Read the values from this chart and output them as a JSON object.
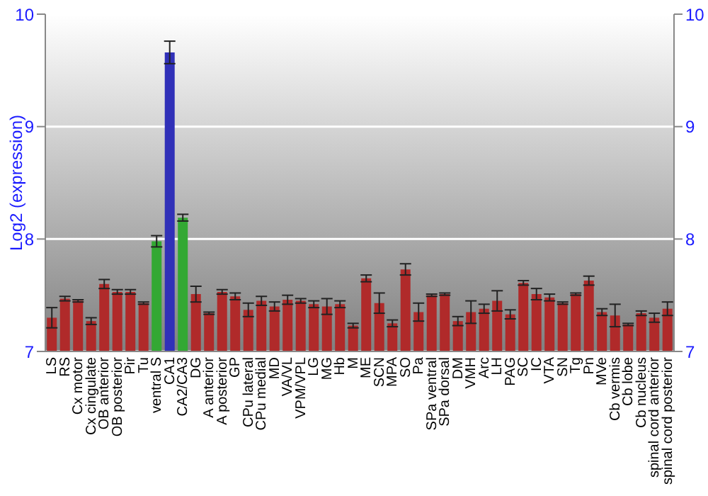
{
  "chart_data": {
    "type": "bar",
    "ylabel": "Log2 (expression)",
    "categories": [
      "LS",
      "RS",
      "Cx motor",
      "Cx cingulate",
      "OB anterior",
      "OB posterior",
      "Pir",
      "Tu",
      "ventral S",
      "CA1",
      "CA2/CA3",
      "DG",
      "A anterior",
      "A posterior",
      "GP",
      "CPu lateral",
      "CPu medial",
      "MD",
      "VA/VL",
      "VPM/VPL",
      "LG",
      "MG",
      "Hb",
      "M",
      "ME",
      "SCN",
      "MPA",
      "SO",
      "Pa",
      "SPa ventral",
      "SPa dorsal",
      "DM",
      "VMH",
      "Arc",
      "LH",
      "PAG",
      "SC",
      "IC",
      "VTA",
      "SN",
      "Tg",
      "Pn",
      "MVe",
      "Cb vermis",
      "Cb lobe",
      "Cb nucleus",
      "spinal cord anterior",
      "spinal cord posterior"
    ],
    "values": [
      7.3,
      7.47,
      7.45,
      7.27,
      7.6,
      7.53,
      7.53,
      7.43,
      7.98,
      9.66,
      8.19,
      7.51,
      7.34,
      7.53,
      7.49,
      7.37,
      7.45,
      7.4,
      7.46,
      7.45,
      7.42,
      7.4,
      7.42,
      7.23,
      7.65,
      7.43,
      7.25,
      7.73,
      7.35,
      7.5,
      7.51,
      7.27,
      7.35,
      7.38,
      7.45,
      7.33,
      7.61,
      7.51,
      7.48,
      7.43,
      7.51,
      7.63,
      7.35,
      7.32,
      7.24,
      7.34,
      7.3,
      7.38
    ],
    "errors": [
      0.09,
      0.02,
      0.01,
      0.03,
      0.04,
      0.02,
      0.02,
      0.01,
      0.05,
      0.1,
      0.03,
      0.07,
      0.01,
      0.02,
      0.03,
      0.06,
      0.04,
      0.04,
      0.04,
      0.02,
      0.03,
      0.07,
      0.03,
      0.02,
      0.03,
      0.09,
      0.03,
      0.05,
      0.08,
      0.01,
      0.01,
      0.04,
      0.1,
      0.04,
      0.09,
      0.04,
      0.02,
      0.05,
      0.03,
      0.01,
      0.01,
      0.04,
      0.03,
      0.1,
      0.01,
      0.02,
      0.04,
      0.06
    ],
    "colors": [
      "#b02a2a",
      "#b02a2a",
      "#b02a2a",
      "#b02a2a",
      "#b02a2a",
      "#b02a2a",
      "#b02a2a",
      "#b02a2a",
      "#33a833",
      "#3030b8",
      "#33a833",
      "#b02a2a",
      "#b02a2a",
      "#b02a2a",
      "#b02a2a",
      "#b02a2a",
      "#b02a2a",
      "#b02a2a",
      "#b02a2a",
      "#b02a2a",
      "#b02a2a",
      "#b02a2a",
      "#b02a2a",
      "#b02a2a",
      "#b02a2a",
      "#b02a2a",
      "#b02a2a",
      "#b02a2a",
      "#b02a2a",
      "#b02a2a",
      "#b02a2a",
      "#b02a2a",
      "#b02a2a",
      "#b02a2a",
      "#b02a2a",
      "#b02a2a",
      "#b02a2a",
      "#b02a2a",
      "#b02a2a",
      "#b02a2a",
      "#b02a2a",
      "#b02a2a",
      "#b02a2a",
      "#b02a2a",
      "#b02a2a",
      "#b02a2a",
      "#b02a2a",
      "#b02a2a"
    ],
    "ylim": [
      7,
      10
    ],
    "yticks": [
      7,
      8,
      9,
      10
    ],
    "y2lim": [
      7,
      10
    ],
    "y2ticks": [
      7,
      8,
      9,
      10
    ],
    "grid": "y"
  }
}
